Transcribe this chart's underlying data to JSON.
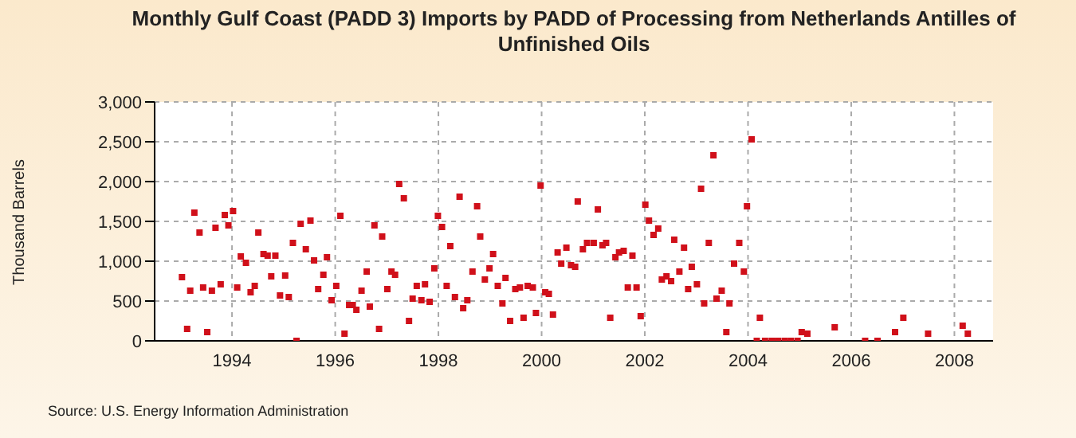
{
  "chart_data": {
    "type": "scatter",
    "title": "Monthly Gulf Coast (PADD 3) Imports by PADD of Processing from Netherlands Antilles of Unfinished Oils",
    "ylabel": "Thousand Barrels",
    "annotations": [
      "Source: U.S. Energy Information Administration"
    ],
    "x": [
      1993.03,
      1993.13,
      1993.19,
      1993.27,
      1993.37,
      1993.44,
      1993.52,
      1993.61,
      1993.68,
      1993.78,
      1993.86,
      1993.93,
      1994.02,
      1994.1,
      1994.17,
      1994.27,
      1994.36,
      1994.44,
      1994.51,
      1994.61,
      1994.69,
      1994.76,
      1994.84,
      1994.93,
      1995.03,
      1995.1,
      1995.18,
      1995.25,
      1995.33,
      1995.43,
      1995.52,
      1995.59,
      1995.67,
      1995.77,
      1995.84,
      1995.93,
      1996.02,
      1996.1,
      1996.18,
      1996.27,
      1996.34,
      1996.41,
      1996.51,
      1996.61,
      1996.67,
      1996.76,
      1996.85,
      1996.91,
      1997.01,
      1997.09,
      1997.16,
      1997.24,
      1997.33,
      1997.43,
      1997.5,
      1997.58,
      1997.67,
      1997.74,
      1997.83,
      1997.92,
      1997.99,
      1998.07,
      1998.16,
      1998.23,
      1998.32,
      1998.41,
      1998.48,
      1998.56,
      1998.66,
      1998.75,
      1998.81,
      1998.9,
      1998.99,
      1999.06,
      1999.15,
      1999.24,
      1999.3,
      1999.39,
      1999.49,
      1999.58,
      1999.65,
      1999.73,
      1999.83,
      1999.89,
      1999.98,
      2000.07,
      2000.14,
      2000.22,
      2000.31,
      2000.38,
      2000.48,
      2000.57,
      2000.65,
      2000.7,
      2000.8,
      2000.88,
      2001.01,
      2001.09,
      2001.18,
      2001.25,
      2001.33,
      2001.43,
      2001.5,
      2001.59,
      2001.67,
      2001.76,
      2001.84,
      2001.92,
      2002.01,
      2002.08,
      2002.17,
      2002.26,
      2002.33,
      2002.42,
      2002.51,
      2002.57,
      2002.67,
      2002.76,
      2002.84,
      2002.91,
      2003.01,
      2003.09,
      2003.15,
      2003.24,
      2003.33,
      2003.39,
      2003.49,
      2003.58,
      2003.64,
      2003.73,
      2003.83,
      2003.92,
      2003.98,
      2004.07,
      2004.17,
      2004.23,
      2004.33,
      2004.46,
      2004.58,
      2004.71,
      2004.83,
      2004.96,
      2005.04,
      2005.15,
      2005.68,
      2006.27,
      2006.51,
      2006.85,
      2007.01,
      2007.49,
      2008.16,
      2008.26
    ],
    "series": [
      {
        "color": "#d0101a",
        "values": [
          800,
          150,
          630,
          1610,
          1360,
          670,
          110,
          630,
          1420,
          710,
          1580,
          1450,
          1630,
          670,
          1060,
          980,
          610,
          690,
          1360,
          1090,
          1070,
          810,
          1070,
          570,
          820,
          550,
          1230,
          0,
          1470,
          1150,
          1510,
          1010,
          650,
          830,
          1050,
          510,
          690,
          1570,
          90,
          450,
          450,
          390,
          630,
          870,
          430,
          1450,
          150,
          1310,
          650,
          870,
          830,
          1970,
          1790,
          250,
          530,
          690,
          510,
          710,
          490,
          910,
          1570,
          1430,
          690,
          1190,
          550,
          1810,
          410,
          510,
          870,
          1690,
          1310,
          770,
          910,
          1090,
          690,
          470,
          790,
          250,
          650,
          670,
          290,
          690,
          670,
          350,
          1950,
          610,
          590,
          330,
          1110,
          970,
          1170,
          950,
          930,
          1750,
          1150,
          1230,
          1230,
          1650,
          1200,
          1230,
          290,
          1050,
          1110,
          1130,
          670,
          1070,
          670,
          310,
          1710,
          1510,
          1330,
          1410,
          770,
          810,
          750,
          1270,
          870,
          1170,
          650,
          930,
          710,
          1910,
          470,
          1230,
          2330,
          530,
          630,
          110,
          470,
          970,
          1230,
          870,
          1690,
          2530,
          0,
          290,
          0,
          0,
          0,
          0,
          0,
          0,
          110,
          90,
          170,
          0,
          0,
          110,
          290,
          90,
          190,
          90
        ]
      }
    ],
    "xlim": [
      1992.5,
      2008.75
    ],
    "xticks": [
      1994,
      1996,
      1998,
      2000,
      2002,
      2004,
      2006,
      2008
    ],
    "ylim": [
      0,
      3000
    ],
    "yticks": [
      0,
      {
        "value": 500,
        "label": "500"
      },
      {
        "value": 1000,
        "label": "1,000"
      },
      {
        "value": 1500,
        "label": "1,500"
      },
      {
        "value": 2000,
        "label": "2,000"
      },
      {
        "value": 2500,
        "label": "2,500"
      },
      {
        "value": 3000,
        "label": "3,000"
      }
    ],
    "grid": true,
    "marker": "square",
    "legend": false
  }
}
